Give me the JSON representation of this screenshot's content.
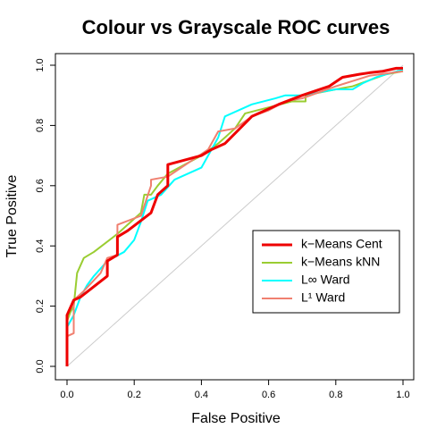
{
  "chart_data": {
    "type": "line",
    "title": "Colour vs Grayscale ROC curves",
    "x_label": "False Positive",
    "y_label": "True Positive",
    "xlim": [
      0,
      1
    ],
    "ylim": [
      0,
      1
    ],
    "xticks": [
      {
        "value": 0,
        "label": "0.0"
      },
      0.2,
      0.4,
      0.6,
      0.8,
      {
        "value": 1,
        "label": "1.0"
      }
    ],
    "yticks": [
      {
        "value": 0,
        "label": "0.0"
      },
      0.2,
      0.4,
      0.6,
      0.8,
      {
        "value": 1,
        "label": "1.0"
      }
    ],
    "legend": "bottom-right",
    "series": [
      {
        "name": "k−Means kNN",
        "color": "#9acd32",
        "x": [
          0,
          0.01,
          0.02,
          0.03,
          0.05,
          0.08,
          0.15,
          0.22,
          0.23,
          0.25,
          0.27,
          0.3,
          0.4,
          0.45,
          0.5,
          0.53,
          0.6,
          0.67,
          0.71,
          0.71,
          0.8,
          0.85,
          0.95,
          1
        ],
        "values": [
          0.15,
          0.18,
          0.2,
          0.31,
          0.36,
          0.38,
          0.44,
          0.51,
          0.57,
          0.57,
          0.6,
          0.64,
          0.7,
          0.74,
          0.79,
          0.84,
          0.86,
          0.88,
          0.88,
          0.9,
          0.92,
          0.93,
          0.97,
          0.98
        ]
      },
      {
        "name": "L∞ Ward",
        "color": "#00ffff",
        "x": [
          0,
          0.02,
          0.04,
          0.06,
          0.08,
          0.12,
          0.17,
          0.2,
          0.22,
          0.24,
          0.28,
          0.32,
          0.36,
          0.4,
          0.45,
          0.47,
          0.55,
          0.62,
          0.65,
          0.7,
          0.8,
          0.85,
          0.88,
          0.92,
          0.95,
          1
        ],
        "values": [
          0.13,
          0.17,
          0.23,
          0.27,
          0.3,
          0.35,
          0.38,
          0.42,
          0.48,
          0.55,
          0.57,
          0.62,
          0.64,
          0.66,
          0.76,
          0.83,
          0.87,
          0.89,
          0.9,
          0.9,
          0.92,
          0.92,
          0.94,
          0.96,
          0.97,
          0.985
        ]
      },
      {
        "name": "L¹ Ward",
        "color": "#f08070",
        "x": [
          0,
          0.02,
          0.02,
          0.05,
          0.1,
          0.12,
          0.15,
          0.15,
          0.22,
          0.25,
          0.25,
          0.3,
          0.38,
          0.42,
          0.45,
          0.5,
          0.55,
          0.6,
          0.65,
          0.7,
          0.8,
          0.9,
          1
        ],
        "values": [
          0.1,
          0.11,
          0.22,
          0.25,
          0.31,
          0.36,
          0.37,
          0.47,
          0.5,
          0.6,
          0.62,
          0.63,
          0.69,
          0.72,
          0.78,
          0.79,
          0.83,
          0.85,
          0.88,
          0.89,
          0.93,
          0.965,
          0.98
        ]
      },
      {
        "name": "k−Means Cent",
        "color": "#ee0000",
        "x": [
          0,
          0,
          0.02,
          0.04,
          0.12,
          0.12,
          0.15,
          0.15,
          0.18,
          0.25,
          0.27,
          0.3,
          0.3,
          0.4,
          0.43,
          0.47,
          0.55,
          0.63,
          0.7,
          0.78,
          0.82,
          0.87,
          0.9,
          0.94,
          0.98,
          1
        ],
        "values": [
          0,
          0.17,
          0.22,
          0.23,
          0.3,
          0.35,
          0.37,
          0.43,
          0.45,
          0.51,
          0.57,
          0.6,
          0.67,
          0.7,
          0.72,
          0.74,
          0.83,
          0.87,
          0.9,
          0.93,
          0.96,
          0.97,
          0.975,
          0.98,
          0.99,
          0.99
        ]
      }
    ]
  }
}
